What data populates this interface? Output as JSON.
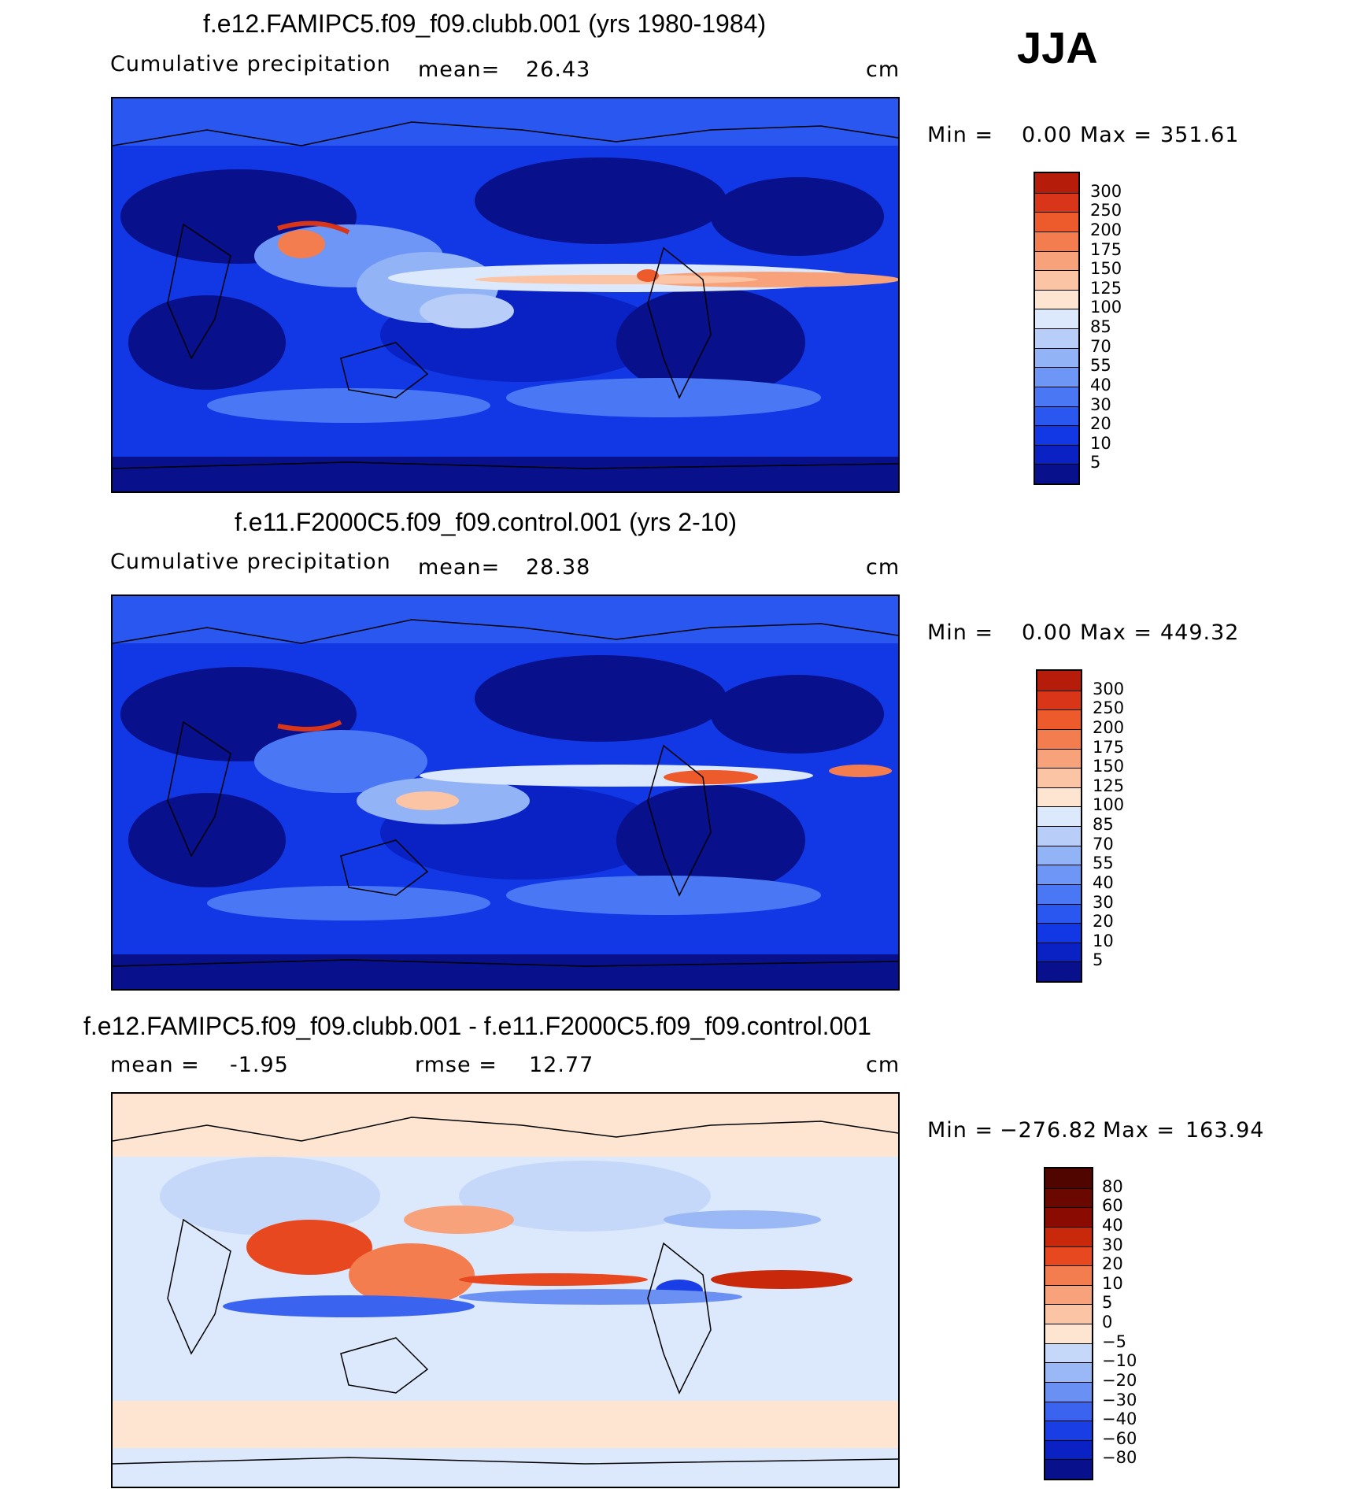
{
  "season": "JJA",
  "colors": {
    "abs_levels": [
      "#08108c",
      "#0a22c4",
      "#1238e6",
      "#2a57f0",
      "#4a78f5",
      "#6d96f6",
      "#93b3f7",
      "#b8cdf8",
      "#dce8fb",
      "#fde5d2",
      "#fbc4a4",
      "#f7a27a",
      "#f47d50",
      "#ed5a2c",
      "#d93518",
      "#b51d0a",
      "#8a0b02"
    ],
    "diff_levels": [
      "#08108c",
      "#0a22c4",
      "#1a3ee6",
      "#3a64f0",
      "#6a90f3",
      "#9ab8f6",
      "#c6d8fa",
      "#fde5d2",
      "#fbc4a4",
      "#f7a27a",
      "#f47d50",
      "#e8481f",
      "#c9290a",
      "#8a0b02"
    ]
  },
  "panels": [
    {
      "title": "f.e12.FAMIPC5.f09_f09.clubb.001 (yrs 1980-1984)",
      "field_label": "Cumulative precipitation",
      "stat_label": "mean=",
      "stat_value": "26.43",
      "units": "cm",
      "min_label": "Min =",
      "min_value": "0.00",
      "max_label": "Max =",
      "max_value": "351.61",
      "colorbar_ticks": [
        "300",
        "250",
        "200",
        "175",
        "150",
        "125",
        "100",
        "85",
        "70",
        "55",
        "40",
        "30",
        "20",
        "10",
        "5"
      ]
    },
    {
      "title": "f.e11.F2000C5.f09_f09.control.001 (yrs 2-10)",
      "field_label": "Cumulative precipitation",
      "stat_label": "mean=",
      "stat_value": "28.38",
      "units": "cm",
      "min_label": "Min =",
      "min_value": "0.00",
      "max_label": "Max =",
      "max_value": "449.32",
      "colorbar_ticks": [
        "300",
        "250",
        "200",
        "175",
        "150",
        "125",
        "100",
        "85",
        "70",
        "55",
        "40",
        "30",
        "20",
        "10",
        "5"
      ]
    },
    {
      "title": "f.e12.FAMIPC5.f09_f09.clubb.001 - f.e11.F2000C5.f09_f09.control.001",
      "field_label": "mean =",
      "stat_label": "-1.95",
      "rmse_label": "rmse =",
      "rmse_value": "12.77",
      "units": "cm",
      "min_label": "Min =",
      "min_value": "−276.82",
      "max_label": "Max =",
      "max_value": "163.94",
      "colorbar_ticks": [
        "80",
        "60",
        "40",
        "30",
        "20",
        "10",
        "5",
        "0",
        "−5",
        "−10",
        "−20",
        "−30",
        "−40",
        "−60",
        "−80"
      ]
    }
  ]
}
